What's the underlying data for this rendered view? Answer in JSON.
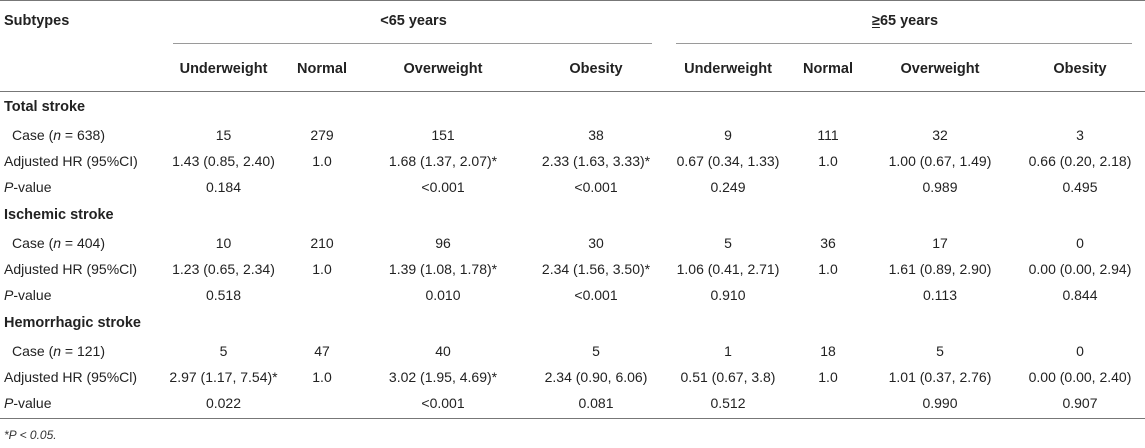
{
  "header": {
    "subtypes": "Subtypes",
    "group_lt65": "<65 years",
    "group_ge65_sym": "≥",
    "group_ge65_rest": "65 years",
    "columns": [
      "Underweight",
      "Normal",
      "Overweight",
      "Obesity",
      "Underweight",
      "Normal",
      "Overweight",
      "Obesity"
    ]
  },
  "sections": [
    {
      "title": "Total stroke",
      "case_label_prefix": "Case (",
      "case_label_n": "n",
      "case_label_suffix": " = 638)",
      "case": [
        "15",
        "279",
        "151",
        "38",
        "9",
        "111",
        "32",
        "3"
      ],
      "hr_label": "Adjusted HR (95%CI)",
      "hr": [
        "1.43 (0.85, 2.40)",
        "1.0",
        "1.68 (1.37, 2.07)*",
        "2.33 (1.63, 3.33)*",
        "0.67 (0.34, 1.33)",
        "1.0",
        "1.00 (0.67, 1.49)",
        "0.66 (0.20, 2.18)"
      ],
      "p_label_p": "P",
      "p_label_rest": "-value",
      "p": [
        "0.184",
        "",
        "<0.001",
        "<0.001",
        "0.249",
        "",
        "0.989",
        "0.495"
      ]
    },
    {
      "title": "Ischemic stroke",
      "case_label_prefix": "Case (",
      "case_label_n": "n",
      "case_label_suffix": " = 404)",
      "case": [
        "10",
        "210",
        "96",
        "30",
        "5",
        "36",
        "17",
        "0"
      ],
      "hr_label": "Adjusted HR (95%Cl)",
      "hr": [
        "1.23 (0.65, 2.34)",
        "1.0",
        "1.39 (1.08, 1.78)*",
        "2.34 (1.56, 3.50)*",
        "1.06 (0.41, 2.71)",
        "1.0",
        "1.61 (0.89, 2.90)",
        "0.00 (0.00, 2.94)"
      ],
      "p_label_p": "P",
      "p_label_rest": "-value",
      "p": [
        "0.518",
        "",
        "0.010",
        "<0.001",
        "0.910",
        "",
        "0.113",
        "0.844"
      ]
    },
    {
      "title": "Hemorrhagic stroke",
      "case_label_prefix": "Case (",
      "case_label_n": "n",
      "case_label_suffix": " = 121)",
      "case": [
        "5",
        "47",
        "40",
        "5",
        "1",
        "18",
        "5",
        "0"
      ],
      "hr_label": "Adjusted HR (95%Cl)",
      "hr": [
        "2.97 (1.17, 7.54)*",
        "1.0",
        "3.02 (1.95, 4.69)*",
        "2.34 (0.90, 6.06)",
        "0.51 (0.67, 3.8)",
        "1.0",
        "1.01 (0.37, 2.76)",
        "0.00 (0.00, 2.40)"
      ],
      "p_label_p": "P",
      "p_label_rest": "-value",
      "p": [
        "0.022",
        "",
        "<0.001",
        "0.081",
        "0.512",
        "",
        "0.990",
        "0.907"
      ]
    }
  ],
  "footnote": "*P < 0.05."
}
